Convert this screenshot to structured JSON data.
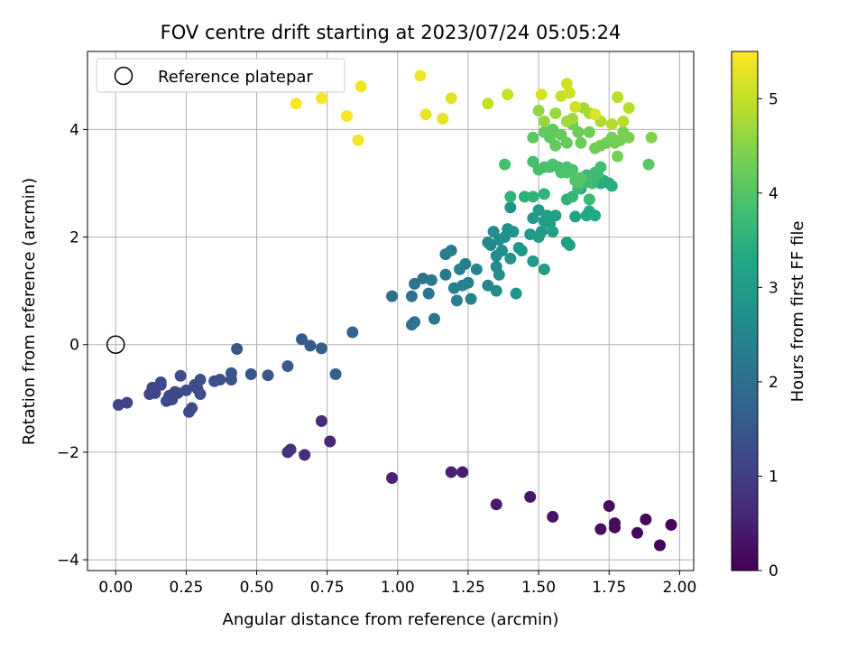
{
  "chart_data": {
    "type": "scatter",
    "title": "FOV centre drift starting at 2023/07/24 05:05:24",
    "xlabel": "Angular distance from reference (arcmin)",
    "ylabel": "Rotation from reference (arcmin)",
    "xlim": [
      -0.1,
      2.05
    ],
    "ylim": [
      -4.2,
      5.45
    ],
    "x_ticks": [
      "0.00",
      "0.25",
      "0.50",
      "0.75",
      "1.00",
      "1.25",
      "1.50",
      "1.75",
      "2.00"
    ],
    "x_tick_values": [
      0,
      0.25,
      0.5,
      0.75,
      1.0,
      1.25,
      1.5,
      1.75,
      2.0
    ],
    "y_ticks": [
      "−4",
      "−2",
      "0",
      "2",
      "4"
    ],
    "y_tick_values": [
      -4,
      -2,
      0,
      2,
      4
    ],
    "grid": true,
    "legend": {
      "position": "top-left",
      "entries": [
        "Reference platepar"
      ]
    },
    "reference_point": {
      "x": 0,
      "y": 0,
      "marker": "open-circle"
    },
    "colorbar": {
      "label": "Hours from first FF file",
      "colormap": "viridis",
      "range": [
        0,
        5.5
      ],
      "ticks": [
        "0",
        "1",
        "2",
        "3",
        "4",
        "5"
      ],
      "tick_values": [
        0,
        1,
        2,
        3,
        4,
        5
      ]
    },
    "points": [
      [
        1.93,
        -3.73,
        0.05
      ],
      [
        1.97,
        -3.35,
        0.07
      ],
      [
        1.88,
        -3.25,
        0.1
      ],
      [
        1.85,
        -3.5,
        0.12
      ],
      [
        1.77,
        -3.4,
        0.15
      ],
      [
        1.77,
        -3.32,
        0.17
      ],
      [
        1.75,
        -3.0,
        0.2
      ],
      [
        1.72,
        -3.43,
        0.22
      ],
      [
        1.55,
        -3.2,
        0.28
      ],
      [
        1.47,
        -2.83,
        0.33
      ],
      [
        1.35,
        -2.97,
        0.38
      ],
      [
        1.23,
        -2.37,
        0.45
      ],
      [
        1.19,
        -2.37,
        0.5
      ],
      [
        0.98,
        -2.48,
        0.55
      ],
      [
        0.76,
        -1.8,
        0.62
      ],
      [
        0.73,
        -1.42,
        0.67
      ],
      [
        0.67,
        -2.05,
        0.72
      ],
      [
        0.62,
        -1.95,
        0.76
      ],
      [
        0.61,
        -2.0,
        0.8
      ],
      [
        0.01,
        -1.12,
        1.12
      ],
      [
        0.04,
        -1.08,
        1.13
      ],
      [
        0.12,
        -0.92,
        1.15
      ],
      [
        0.13,
        -0.8,
        1.16
      ],
      [
        0.14,
        -0.9,
        1.17
      ],
      [
        0.16,
        -0.75,
        1.18
      ],
      [
        0.16,
        -0.7,
        1.19
      ],
      [
        0.18,
        -1.05,
        1.2
      ],
      [
        0.19,
        -0.95,
        1.2
      ],
      [
        0.2,
        -1.02,
        1.21
      ],
      [
        0.21,
        -0.88,
        1.22
      ],
      [
        0.22,
        -0.9,
        1.23
      ],
      [
        0.23,
        -0.58,
        1.24
      ],
      [
        0.25,
        -0.85,
        1.25
      ],
      [
        0.26,
        -1.25,
        1.26
      ],
      [
        0.27,
        -1.18,
        1.27
      ],
      [
        0.28,
        -0.75,
        1.28
      ],
      [
        0.29,
        -0.82,
        1.29
      ],
      [
        0.3,
        -0.65,
        1.3
      ],
      [
        0.3,
        -0.92,
        1.31
      ],
      [
        0.35,
        -0.68,
        1.33
      ],
      [
        0.37,
        -0.65,
        1.35
      ],
      [
        0.41,
        -0.65,
        1.38
      ],
      [
        0.41,
        -0.53,
        1.4
      ],
      [
        0.43,
        -0.08,
        1.42
      ],
      [
        0.48,
        -0.55,
        1.45
      ],
      [
        0.54,
        -0.57,
        1.48
      ],
      [
        0.61,
        -0.4,
        1.52
      ],
      [
        0.66,
        0.1,
        1.55
      ],
      [
        0.69,
        -0.02,
        1.58
      ],
      [
        0.73,
        -0.07,
        1.6
      ],
      [
        0.78,
        -0.55,
        1.62
      ],
      [
        0.84,
        0.23,
        1.7
      ],
      [
        0.98,
        0.9,
        2.0
      ],
      [
        1.05,
        0.9,
        2.05
      ],
      [
        1.05,
        0.37,
        2.05
      ],
      [
        1.06,
        0.42,
        2.06
      ],
      [
        1.06,
        1.13,
        2.08
      ],
      [
        1.09,
        1.23,
        2.12
      ],
      [
        1.11,
        0.95,
        2.15
      ],
      [
        1.12,
        1.2,
        2.18
      ],
      [
        1.13,
        0.48,
        2.2
      ],
      [
        1.17,
        1.3,
        2.25
      ],
      [
        1.17,
        1.68,
        2.28
      ],
      [
        1.19,
        1.75,
        2.3
      ],
      [
        1.2,
        1.05,
        2.3
      ],
      [
        1.21,
        0.82,
        2.32
      ],
      [
        1.22,
        1.4,
        2.35
      ],
      [
        1.23,
        1.1,
        2.38
      ],
      [
        1.24,
        1.5,
        2.4
      ],
      [
        1.25,
        1.15,
        2.42
      ],
      [
        1.26,
        0.85,
        2.44
      ],
      [
        1.28,
        1.4,
        2.46
      ],
      [
        1.32,
        1.1,
        2.5
      ],
      [
        1.32,
        1.9,
        2.55
      ],
      [
        1.33,
        1.85,
        2.57
      ],
      [
        1.34,
        2.1,
        2.6
      ],
      [
        1.35,
        1.45,
        2.62
      ],
      [
        1.35,
        1.65,
        2.64
      ],
      [
        1.35,
        1.0,
        2.66
      ],
      [
        1.36,
        1.3,
        2.67
      ],
      [
        1.36,
        1.95,
        2.68
      ],
      [
        1.37,
        1.75,
        2.7
      ],
      [
        1.38,
        2.0,
        2.72
      ],
      [
        1.39,
        2.15,
        2.75
      ],
      [
        1.4,
        1.6,
        2.77
      ],
      [
        1.4,
        2.55,
        2.8
      ],
      [
        1.41,
        2.1,
        2.82
      ],
      [
        1.42,
        0.95,
        2.84
      ],
      [
        1.43,
        1.8,
        2.86
      ],
      [
        1.44,
        1.75,
        2.88
      ],
      [
        1.47,
        2.05,
        2.9
      ],
      [
        1.48,
        2.35,
        2.92
      ],
      [
        1.48,
        1.55,
        2.94
      ],
      [
        1.5,
        2.0,
        2.96
      ],
      [
        1.5,
        2.5,
        2.98
      ],
      [
        1.51,
        2.1,
        3.0
      ],
      [
        1.52,
        1.4,
        3.0
      ],
      [
        1.52,
        2.3,
        3.02
      ],
      [
        1.53,
        2.4,
        3.04
      ],
      [
        1.54,
        2.25,
        3.06
      ],
      [
        1.55,
        2.1,
        3.08
      ],
      [
        1.56,
        2.4,
        3.1
      ],
      [
        1.6,
        1.9,
        3.12
      ],
      [
        1.61,
        1.85,
        3.14
      ],
      [
        1.63,
        2.38,
        3.18
      ],
      [
        1.65,
        2.9,
        3.2
      ],
      [
        1.67,
        2.4,
        3.25
      ],
      [
        1.68,
        2.48,
        3.28
      ],
      [
        1.7,
        2.4,
        3.3
      ],
      [
        1.72,
        3.0,
        3.35
      ],
      [
        1.73,
        3.05,
        3.4
      ],
      [
        1.75,
        3.0,
        3.42
      ],
      [
        1.76,
        2.95,
        3.45
      ],
      [
        1.45,
        2.75,
        3.5
      ],
      [
        1.4,
        2.75,
        3.55
      ],
      [
        1.48,
        2.75,
        3.55
      ],
      [
        1.52,
        2.8,
        3.55
      ],
      [
        1.6,
        2.7,
        3.55
      ],
      [
        1.62,
        2.75,
        3.6
      ],
      [
        1.64,
        2.9,
        3.65
      ],
      [
        1.66,
        3.0,
        3.7
      ],
      [
        1.67,
        3.15,
        3.72
      ],
      [
        1.68,
        2.7,
        3.7
      ],
      [
        1.69,
        3.0,
        3.74
      ],
      [
        1.7,
        3.2,
        3.75
      ],
      [
        1.71,
        3.15,
        3.76
      ],
      [
        1.72,
        3.3,
        3.78
      ],
      [
        1.38,
        3.35,
        3.85
      ],
      [
        1.48,
        3.4,
        3.85
      ],
      [
        1.5,
        3.25,
        3.88
      ],
      [
        1.52,
        3.3,
        3.88
      ],
      [
        1.54,
        3.3,
        3.9
      ],
      [
        1.55,
        3.35,
        3.9
      ],
      [
        1.57,
        3.3,
        3.92
      ],
      [
        1.58,
        3.2,
        3.92
      ],
      [
        1.6,
        3.2,
        3.95
      ],
      [
        1.62,
        3.25,
        3.95
      ],
      [
        1.6,
        3.3,
        3.95
      ],
      [
        1.63,
        3.05,
        3.98
      ],
      [
        1.64,
        3.0,
        4.0
      ],
      [
        1.65,
        3.1,
        4.0
      ],
      [
        1.89,
        3.35,
        4.05
      ],
      [
        1.48,
        3.85,
        4.1
      ],
      [
        1.52,
        3.95,
        4.12
      ],
      [
        1.54,
        3.85,
        4.15
      ],
      [
        1.55,
        4.0,
        4.15
      ],
      [
        1.56,
        3.7,
        4.18
      ],
      [
        1.58,
        3.9,
        4.2
      ],
      [
        1.6,
        3.75,
        4.2
      ],
      [
        1.62,
        4.1,
        4.22
      ],
      [
        1.64,
        3.95,
        4.25
      ],
      [
        1.65,
        3.75,
        4.25
      ],
      [
        1.68,
        3.95,
        4.28
      ],
      [
        1.7,
        3.65,
        4.28
      ],
      [
        1.72,
        3.7,
        4.3
      ],
      [
        1.74,
        3.75,
        4.3
      ],
      [
        1.76,
        3.85,
        4.32
      ],
      [
        1.77,
        3.75,
        4.32
      ],
      [
        1.78,
        3.5,
        4.35
      ],
      [
        1.79,
        3.8,
        4.35
      ],
      [
        1.8,
        3.95,
        4.38
      ],
      [
        1.82,
        3.85,
        4.4
      ],
      [
        1.9,
        3.85,
        4.45
      ],
      [
        1.5,
        4.35,
        4.6
      ],
      [
        1.52,
        4.15,
        4.62
      ],
      [
        1.56,
        4.3,
        4.65
      ],
      [
        1.6,
        4.15,
        4.7
      ],
      [
        1.62,
        4.2,
        4.72
      ],
      [
        1.66,
        4.4,
        4.75
      ],
      [
        1.68,
        4.3,
        4.8
      ],
      [
        1.72,
        4.15,
        4.85
      ],
      [
        1.76,
        4.1,
        4.88
      ],
      [
        1.78,
        4.6,
        4.92
      ],
      [
        1.8,
        4.15,
        4.9
      ],
      [
        1.82,
        4.4,
        4.92
      ],
      [
        1.32,
        4.48,
        5.0
      ],
      [
        1.39,
        4.65,
        5.05
      ],
      [
        1.58,
        4.62,
        5.05
      ],
      [
        1.6,
        4.85,
        5.1
      ],
      [
        1.61,
        4.68,
        5.1
      ],
      [
        1.63,
        4.42,
        5.12
      ],
      [
        1.51,
        4.65,
        5.15
      ],
      [
        1.7,
        4.28,
        5.2
      ],
      [
        1.19,
        4.58,
        5.25
      ],
      [
        1.16,
        4.2,
        5.3
      ],
      [
        1.1,
        4.28,
        5.33
      ],
      [
        1.08,
        5.0,
        5.38
      ],
      [
        0.87,
        4.8,
        5.4
      ],
      [
        0.82,
        4.25,
        5.42
      ],
      [
        0.86,
        3.8,
        5.43
      ],
      [
        0.73,
        4.58,
        5.44
      ],
      [
        0.64,
        4.48,
        5.45
      ]
    ]
  }
}
